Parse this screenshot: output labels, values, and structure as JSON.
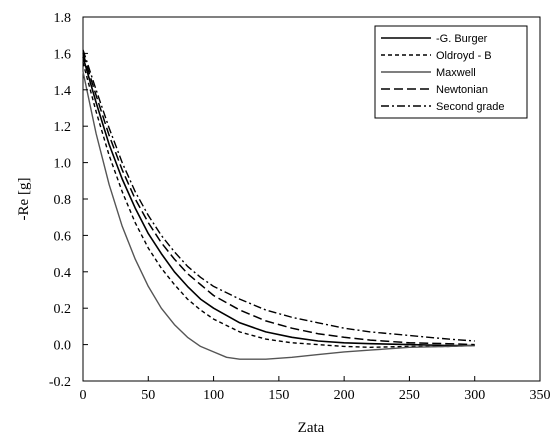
{
  "chart_data": {
    "type": "line",
    "xlabel": "Zata",
    "ylabel": "-Re [g]",
    "xlim": [
      0,
      350
    ],
    "ylim": [
      -0.2,
      1.8
    ],
    "xticks": [
      0,
      50,
      100,
      150,
      200,
      250,
      300,
      350
    ],
    "yticks": [
      -0.2,
      0.0,
      0.2,
      0.4,
      0.6,
      0.8,
      1.0,
      1.2,
      1.4,
      1.6,
      1.8
    ],
    "ytick_labels": [
      "-0.2",
      "0.0",
      "0.2",
      "0.4",
      "0.6",
      "0.8",
      "1.0",
      "1.2",
      "1.4",
      "1.6",
      "1.8"
    ],
    "grid": false,
    "legend_position": "top-right",
    "series": [
      {
        "name": "-G. Burger",
        "style": "solid",
        "color": "#000000",
        "x": [
          0,
          10,
          20,
          30,
          40,
          50,
          60,
          70,
          80,
          90,
          100,
          120,
          140,
          160,
          180,
          200,
          220,
          250,
          280,
          300
        ],
        "y": [
          1.58,
          1.33,
          1.1,
          0.91,
          0.75,
          0.61,
          0.5,
          0.4,
          0.32,
          0.25,
          0.2,
          0.12,
          0.07,
          0.04,
          0.02,
          0.01,
          0.005,
          0.0,
          -0.005,
          -0.005
        ]
      },
      {
        "name": "Oldroyd - B",
        "style": "dashed",
        "color": "#000000",
        "x": [
          0,
          10,
          20,
          30,
          40,
          50,
          60,
          70,
          80,
          90,
          100,
          120,
          140,
          160,
          180,
          200,
          220,
          250,
          280,
          300
        ],
        "y": [
          1.55,
          1.28,
          1.04,
          0.84,
          0.67,
          0.53,
          0.42,
          0.33,
          0.25,
          0.19,
          0.14,
          0.07,
          0.03,
          0.01,
          0.0,
          -0.01,
          -0.015,
          -0.01,
          -0.01,
          -0.005
        ]
      },
      {
        "name": "Maxwell",
        "style": "solid-gray",
        "color": "#555555",
        "x": [
          0,
          10,
          20,
          30,
          40,
          50,
          60,
          70,
          80,
          90,
          100,
          110,
          120,
          140,
          160,
          180,
          200,
          220,
          250,
          280,
          300
        ],
        "y": [
          1.5,
          1.16,
          0.88,
          0.65,
          0.47,
          0.32,
          0.2,
          0.11,
          0.04,
          -0.01,
          -0.04,
          -0.07,
          -0.08,
          -0.08,
          -0.07,
          -0.055,
          -0.04,
          -0.03,
          -0.015,
          -0.01,
          -0.005
        ]
      },
      {
        "name": "Newtonian",
        "style": "longdash",
        "color": "#000000",
        "x": [
          0,
          10,
          20,
          30,
          40,
          50,
          60,
          70,
          80,
          90,
          100,
          120,
          140,
          160,
          180,
          200,
          220,
          250,
          280,
          300
        ],
        "y": [
          1.6,
          1.37,
          1.15,
          0.96,
          0.8,
          0.67,
          0.56,
          0.47,
          0.39,
          0.33,
          0.27,
          0.19,
          0.13,
          0.09,
          0.06,
          0.04,
          0.025,
          0.01,
          0.005,
          0.0
        ]
      },
      {
        "name": "Second grade",
        "style": "dashdot",
        "color": "#000000",
        "x": [
          0,
          10,
          20,
          30,
          40,
          50,
          60,
          70,
          80,
          90,
          100,
          120,
          140,
          160,
          180,
          200,
          220,
          250,
          280,
          300
        ],
        "y": [
          1.62,
          1.4,
          1.19,
          1.0,
          0.84,
          0.71,
          0.6,
          0.51,
          0.43,
          0.37,
          0.32,
          0.25,
          0.19,
          0.15,
          0.12,
          0.09,
          0.07,
          0.05,
          0.03,
          0.02
        ]
      }
    ]
  }
}
